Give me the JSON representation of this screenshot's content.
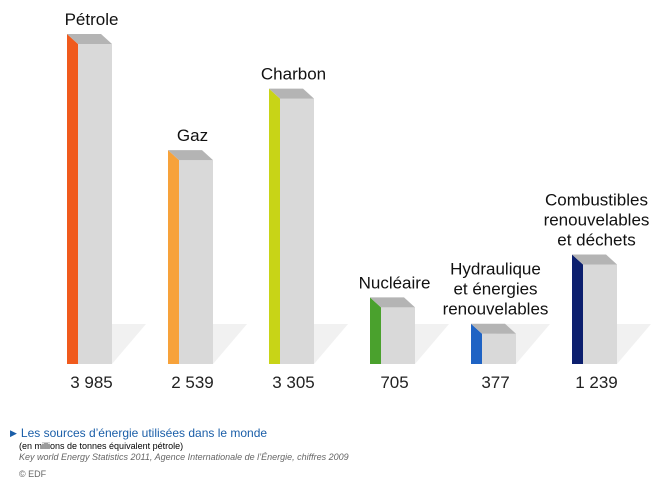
{
  "chart_data": {
    "type": "bar",
    "categories": [
      "Pétrole",
      "Gaz",
      "Charbon",
      "Nucléaire",
      "Hydraulique\net énergies\nrenouvelables",
      "Combustibles\nrenouvelables\net déchets"
    ],
    "values": [
      3985,
      2539,
      3305,
      705,
      377,
      1239
    ],
    "value_labels": [
      "3 985",
      "2 539",
      "3 305",
      "705",
      "377",
      "1 239"
    ],
    "colors": [
      "#f05a1c",
      "#f7a23a",
      "#c8d417",
      "#4aa12d",
      "#1f63c4",
      "#0c1f6e"
    ],
    "ylim": [
      0,
      3985
    ],
    "title": "Les sources d’énergie utilisées dans le monde",
    "subtitle": "(en millions de tonnes équivalent pétrole)",
    "xlabel": "",
    "ylabel": "",
    "grid": false,
    "legend": "none"
  },
  "caption": {
    "title": "Les sources d’énergie utilisées dans le monde",
    "unit": "(en millions de tonnes équivalent pétrole)",
    "source": "Key world Energy Statistics 2011, Agence Internationale de l’Énergie, chiffres 2009",
    "copyright": "© EDF"
  }
}
